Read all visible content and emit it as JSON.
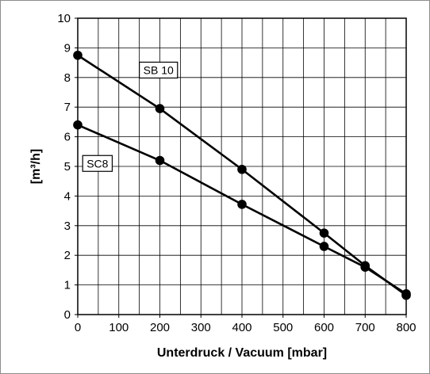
{
  "chart_data": {
    "type": "line",
    "title": "",
    "xlabel": "Unterdruck / Vacuum [mbar]",
    "ylabel": "[m³/h]",
    "xlim": [
      0,
      800
    ],
    "ylim": [
      0,
      10
    ],
    "x_ticks": [
      "0",
      "100",
      "200",
      "300",
      "400",
      "500",
      "600",
      "700",
      "800"
    ],
    "y_ticks": [
      "0",
      "1",
      "2",
      "3",
      "4",
      "5",
      "6",
      "7",
      "8",
      "9",
      "10"
    ],
    "grid": true,
    "series": [
      {
        "name": "SB 10",
        "x": [
          0,
          200,
          400,
          600,
          700,
          800
        ],
        "y": [
          8.75,
          6.95,
          4.9,
          2.75,
          1.65,
          0.65
        ]
      },
      {
        "name": "SC8",
        "x": [
          0,
          200,
          400,
          600,
          700,
          800
        ],
        "y": [
          6.4,
          5.2,
          3.72,
          2.3,
          1.6,
          0.7
        ]
      }
    ],
    "series_label_positions": [
      {
        "series": "SB 10",
        "x": 150,
        "y": 8.25
      },
      {
        "series": "SC8",
        "x": 12,
        "y": 5.1
      }
    ]
  }
}
